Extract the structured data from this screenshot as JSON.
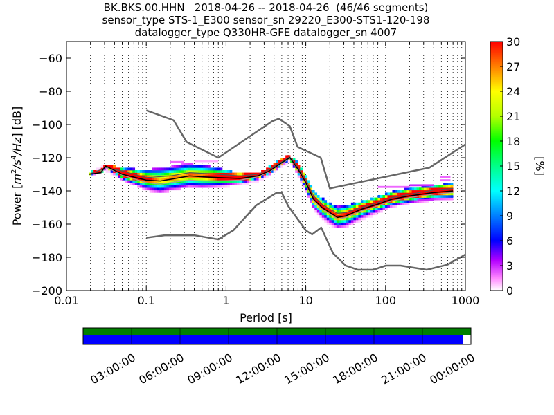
{
  "header": {
    "title_line1": "BK.BKS.00.HHN   2018-04-26 -- 2018-04-26  (46/46 segments)",
    "title_line2": "sensor_type STS-1_E300 sensor_sn 29220_E300-STS1-120-198",
    "title_line3": "datalogger_type Q330HR-GFE datalogger_sn 4007"
  },
  "chart_data": {
    "type": "heatmap",
    "title": "BK.BKS.00.HHN   2018-04-26 -- 2018-04-26  (46/46 segments)",
    "xlabel": "Period [s]",
    "ylabel": "Power [m²/s⁴/Hz] [dB]",
    "ylabel_parts": {
      "prefix": "Power [",
      "expr_main": "m",
      "sup1": "2",
      "slash1": "/s",
      "sup2": "4",
      "slash2": "/Hz",
      "suffix": "] [dB]"
    },
    "xscale": "log",
    "xlim": [
      0.01,
      1000
    ],
    "ylim": [
      -200,
      -50
    ],
    "x_ticks": [
      0.01,
      0.1,
      1,
      10,
      100,
      1000
    ],
    "x_tick_labels": [
      "0.01",
      "0.1",
      "1",
      "10",
      "100",
      "1000"
    ],
    "y_ticks": [
      -200,
      -180,
      -160,
      -140,
      -120,
      -100,
      -80,
      -60
    ],
    "y_tick_labels": [
      "−200",
      "−180",
      "−160",
      "−140",
      "−120",
      "−100",
      "−80",
      "−60"
    ],
    "grid": "dotted vertical",
    "colorbar": {
      "label": "[%]",
      "range": [
        0,
        30
      ],
      "ticks": [
        "0",
        "3",
        "6",
        "9",
        "12",
        "15",
        "18",
        "21",
        "24",
        "27",
        "30"
      ]
    },
    "noise_models": [
      {
        "curve": "upper",
        "color": "#666666",
        "points": [
          [
            0.1,
            -91.5
          ],
          [
            0.22,
            -97.4
          ],
          [
            0.32,
            -110.5
          ],
          [
            0.8,
            -120
          ],
          [
            3.8,
            -98
          ],
          [
            4.6,
            -96.5
          ],
          [
            6.3,
            -101
          ],
          [
            7.9,
            -113.5
          ],
          [
            15.4,
            -120
          ],
          [
            20,
            -138.5
          ],
          [
            354,
            -126
          ],
          [
            1000,
            -112
          ]
        ]
      },
      {
        "curve": "lower",
        "color": "#666666",
        "points": [
          [
            0.1,
            -168.2
          ],
          [
            0.17,
            -166.7
          ],
          [
            0.4,
            -166.7
          ],
          [
            0.8,
            -169.2
          ],
          [
            1.24,
            -163.7
          ],
          [
            2.4,
            -148.6
          ],
          [
            4.3,
            -141.1
          ],
          [
            5,
            -141.1
          ],
          [
            6,
            -149
          ],
          [
            10,
            -163.8
          ],
          [
            12,
            -166.2
          ],
          [
            15.6,
            -162.1
          ],
          [
            21.9,
            -177.5
          ],
          [
            31.6,
            -185
          ],
          [
            45,
            -187.5
          ],
          [
            70,
            -187.5
          ],
          [
            101,
            -185
          ],
          [
            154,
            -185
          ],
          [
            328,
            -187.5
          ],
          [
            600,
            -184.4
          ],
          [
            1000,
            -178.3
          ]
        ]
      }
    ],
    "mean_curve": {
      "color": "#000000",
      "points": [
        [
          0.019,
          -130
        ],
        [
          0.027,
          -129
        ],
        [
          0.031,
          -125
        ],
        [
          0.05,
          -130
        ],
        [
          0.1,
          -133.5
        ],
        [
          0.15,
          -134
        ],
        [
          0.2,
          -133
        ],
        [
          0.35,
          -131
        ],
        [
          0.5,
          -131.5
        ],
        [
          0.8,
          -132
        ],
        [
          1.5,
          -132.5
        ],
        [
          2.5,
          -131
        ],
        [
          3.5,
          -128
        ],
        [
          5,
          -123
        ],
        [
          6.3,
          -120
        ],
        [
          8,
          -127
        ],
        [
          10,
          -135
        ],
        [
          12.5,
          -145
        ],
        [
          16,
          -150
        ],
        [
          20,
          -153
        ],
        [
          25,
          -156
        ],
        [
          32,
          -155
        ],
        [
          50,
          -151
        ],
        [
          80,
          -148
        ],
        [
          120,
          -145
        ],
        [
          200,
          -143
        ],
        [
          400,
          -141
        ],
        [
          700,
          -140
        ]
      ]
    },
    "mode_curve": {
      "color": "#a0a0a0",
      "points": [
        [
          0.019,
          -130
        ],
        [
          0.027,
          -129.5
        ],
        [
          0.031,
          -125.5
        ],
        [
          0.05,
          -130.5
        ],
        [
          0.1,
          -135
        ],
        [
          0.15,
          -136
        ],
        [
          0.2,
          -135
        ],
        [
          0.35,
          -133.5
        ],
        [
          0.5,
          -134
        ],
        [
          0.8,
          -134
        ],
        [
          1.5,
          -133.5
        ],
        [
          2.5,
          -131.5
        ],
        [
          3.5,
          -128.5
        ],
        [
          5,
          -123.5
        ],
        [
          6.3,
          -120.5
        ],
        [
          8,
          -127.5
        ],
        [
          10,
          -135.5
        ],
        [
          12.5,
          -146
        ],
        [
          16,
          -151
        ],
        [
          20,
          -154
        ],
        [
          25,
          -157
        ],
        [
          32,
          -156
        ],
        [
          50,
          -152
        ],
        [
          80,
          -149
        ],
        [
          120,
          -146
        ],
        [
          200,
          -144
        ],
        [
          400,
          -142
        ],
        [
          700,
          -141
        ]
      ]
    },
    "upper_mode": {
      "color": "#555555",
      "points": [
        [
          0.019,
          -130
        ],
        [
          0.031,
          -126
        ],
        [
          0.05,
          -128
        ],
        [
          0.1,
          -132
        ],
        [
          0.2,
          -131
        ],
        [
          0.35,
          -129
        ],
        [
          0.8,
          -130
        ],
        [
          1.5,
          -131
        ],
        [
          2.5,
          -130
        ],
        [
          3.5,
          -127
        ],
        [
          5,
          -122.5
        ],
        [
          6.3,
          -119.5
        ],
        [
          8,
          -126
        ],
        [
          10,
          -133
        ],
        [
          12.5,
          -143
        ],
        [
          16,
          -148
        ],
        [
          20,
          -151
        ],
        [
          25,
          -153.5
        ],
        [
          32,
          -153
        ],
        [
          50,
          -150
        ],
        [
          80,
          -147
        ],
        [
          120,
          -144
        ],
        [
          200,
          -142
        ],
        [
          400,
          -139.5
        ],
        [
          700,
          -138.5
        ]
      ]
    },
    "psd_band": {
      "period_range": [
        0.019,
        700
      ],
      "upper_env_db": [
        [
          0.019,
          -130
        ],
        [
          0.03,
          -124.5
        ],
        [
          0.05,
          -127
        ],
        [
          0.1,
          -128
        ],
        [
          0.2,
          -126
        ],
        [
          0.3,
          -124
        ],
        [
          0.5,
          -125
        ],
        [
          0.8,
          -127
        ],
        [
          1.5,
          -130
        ],
        [
          2.5,
          -130
        ],
        [
          3.5,
          -126
        ],
        [
          5,
          -121
        ],
        [
          6.3,
          -119
        ],
        [
          8,
          -124
        ],
        [
          10,
          -131
        ],
        [
          12.5,
          -140
        ],
        [
          16,
          -145
        ],
        [
          20,
          -148
        ],
        [
          25,
          -150
        ],
        [
          32,
          -149
        ],
        [
          50,
          -147
        ],
        [
          80,
          -144
        ],
        [
          120,
          -141
        ],
        [
          200,
          -139
        ],
        [
          400,
          -137
        ],
        [
          700,
          -136
        ]
      ],
      "lower_env_db": [
        [
          0.019,
          -130.5
        ],
        [
          0.03,
          -127
        ],
        [
          0.05,
          -133
        ],
        [
          0.1,
          -139
        ],
        [
          0.15,
          -141
        ],
        [
          0.2,
          -139
        ],
        [
          0.35,
          -137
        ],
        [
          0.5,
          -138
        ],
        [
          0.8,
          -137
        ],
        [
          1.5,
          -136
        ],
        [
          2.5,
          -134
        ],
        [
          3.5,
          -130
        ],
        [
          5,
          -125
        ],
        [
          6.3,
          -122
        ],
        [
          8,
          -130
        ],
        [
          10,
          -140
        ],
        [
          12.5,
          -150
        ],
        [
          16,
          -156
        ],
        [
          20,
          -160
        ],
        [
          25,
          -162
        ],
        [
          32,
          -161
        ],
        [
          50,
          -157
        ],
        [
          80,
          -153
        ],
        [
          120,
          -149
        ],
        [
          200,
          -147
        ],
        [
          400,
          -145
        ],
        [
          700,
          -145
        ]
      ],
      "outliers": [
        {
          "x_range": [
            0.4,
            0.8
          ],
          "db": -122.5,
          "percent": 1
        },
        {
          "x_range": [
            0.2,
            0.3
          ],
          "db": -123,
          "percent": 2
        },
        {
          "x_range": [
            80,
            200
          ],
          "db": -138,
          "percent": 2
        },
        {
          "x_range": [
            200,
            400
          ],
          "db": -137,
          "percent": 3
        },
        {
          "x_range": [
            480,
            650
          ],
          "db": -132,
          "percent": 2
        },
        {
          "x_range": [
            480,
            650
          ],
          "db": -134,
          "percent": 2
        },
        {
          "x_range": [
            250,
            400
          ],
          "db": -146,
          "percent": 3
        }
      ]
    },
    "coverage": {
      "time_ticks": [
        "03:00:00",
        "06:00:00",
        "09:00:00",
        "12:00:00",
        "15:00:00",
        "18:00:00",
        "21:00:00",
        "00:00:00"
      ],
      "data_color": "#008000",
      "psd_color": "#0000ff",
      "data_fraction": 1.0,
      "psd_fraction": 0.98
    }
  }
}
